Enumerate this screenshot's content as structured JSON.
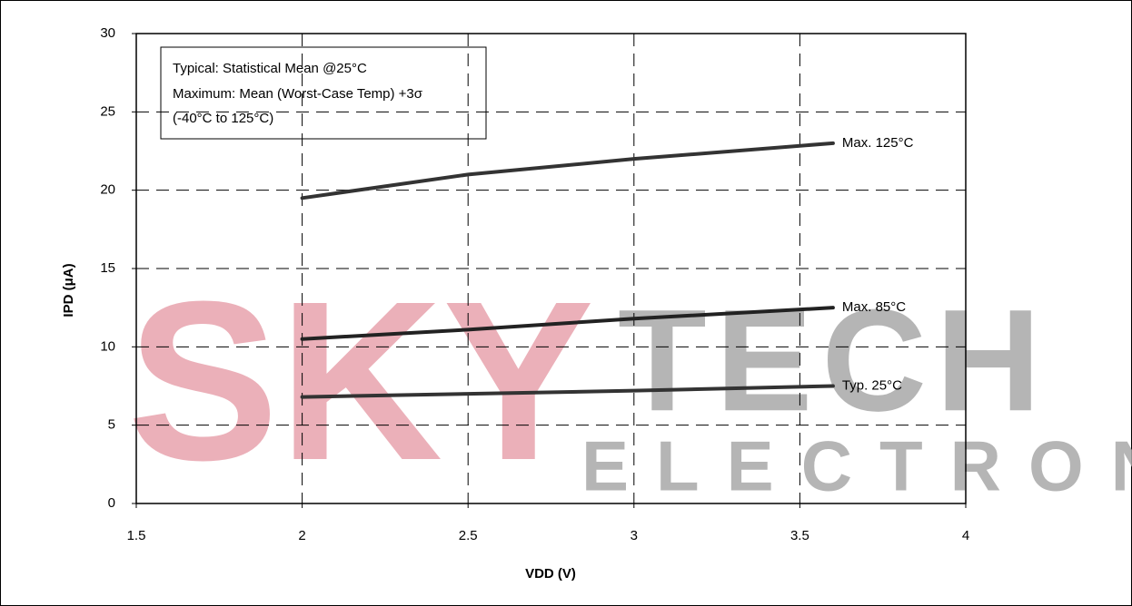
{
  "chart_data": {
    "type": "line",
    "watermark": [
      "SKY",
      "TECH",
      "ELECTRONIC"
    ],
    "annotations": [
      "Typical: Statistical Mean @25°C",
      "Maximum: Mean (Worst-Case Temp) +3σ",
      "(-40°C to 125°C)"
    ],
    "x_label": "VDD (V)",
    "y_label": "IPD (μA)",
    "x": [
      2,
      2.5,
      3,
      3.6
    ],
    "series": [
      {
        "name": "Max. 125°C",
        "color": "#333333",
        "values": [
          19.5,
          21,
          22,
          23
        ]
      },
      {
        "name": "Max. 85°C",
        "color": "#222222",
        "values": [
          10.5,
          11.1,
          11.8,
          12.5
        ]
      },
      {
        "name": "Typ. 25°C",
        "color": "#333333",
        "values": [
          6.8,
          7.0,
          7.2,
          7.5
        ]
      }
    ],
    "xlim": [
      1.5,
      4
    ],
    "xticks": [
      1.5,
      2,
      2.5,
      3,
      3.5,
      4
    ],
    "ylim": [
      0,
      30
    ],
    "yticks": [
      0,
      5,
      10,
      15,
      20,
      25,
      30
    ],
    "grid": true
  }
}
